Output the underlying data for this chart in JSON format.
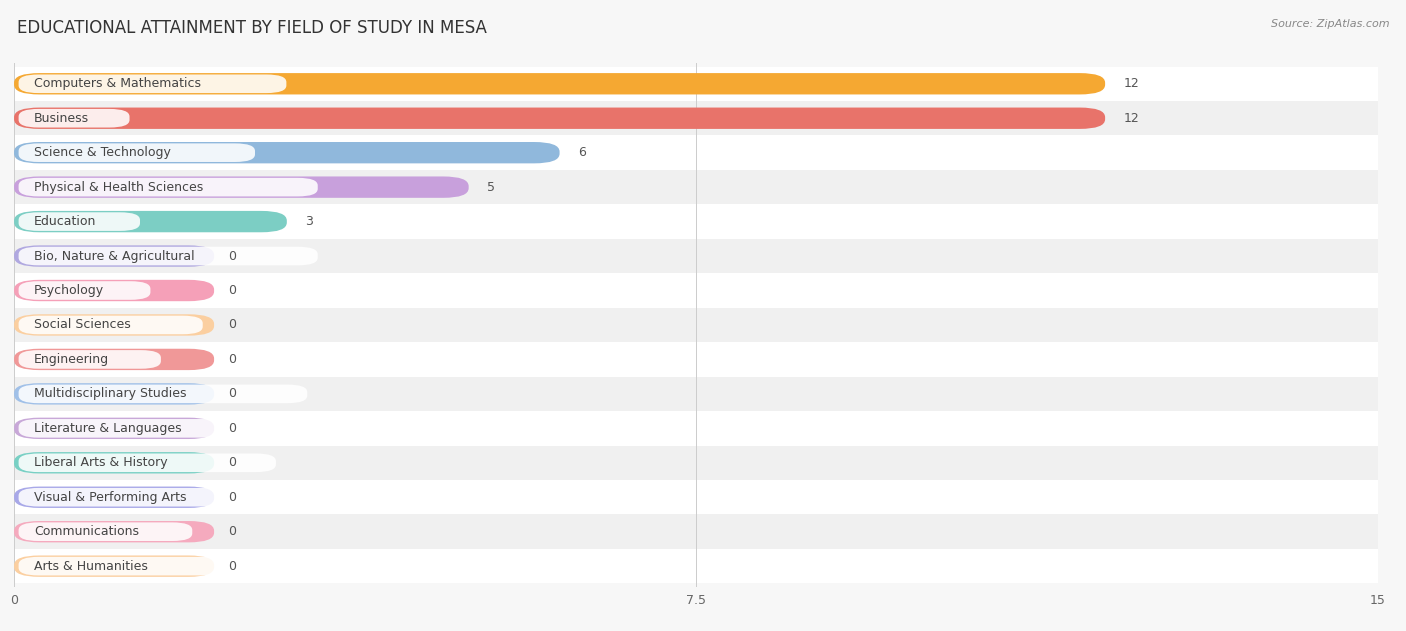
{
  "title": "EDUCATIONAL ATTAINMENT BY FIELD OF STUDY IN MESA",
  "source": "Source: ZipAtlas.com",
  "categories": [
    "Computers & Mathematics",
    "Business",
    "Science & Technology",
    "Physical & Health Sciences",
    "Education",
    "Bio, Nature & Agricultural",
    "Psychology",
    "Social Sciences",
    "Engineering",
    "Multidisciplinary Studies",
    "Literature & Languages",
    "Liberal Arts & History",
    "Visual & Performing Arts",
    "Communications",
    "Arts & Humanities"
  ],
  "values": [
    12,
    12,
    6,
    5,
    3,
    0,
    0,
    0,
    0,
    0,
    0,
    0,
    0,
    0,
    0
  ],
  "bar_colors": [
    "#F5A832",
    "#E8736A",
    "#90B8DC",
    "#C8A0DC",
    "#7CCEC4",
    "#B0A8E0",
    "#F5A0B8",
    "#FBCFA0",
    "#F09898",
    "#A0C0E8",
    "#C8A8D8",
    "#78D0C4",
    "#A8A8E8",
    "#F5AABE",
    "#FBCFA0"
  ],
  "xlim": [
    0,
    15
  ],
  "xticks": [
    0,
    7.5,
    15
  ],
  "background_color": "#f7f7f7",
  "row_bg_even": "#ffffff",
  "row_bg_odd": "#f0f0f0",
  "title_fontsize": 12,
  "label_fontsize": 9,
  "value_fontsize": 9,
  "source_fontsize": 8
}
